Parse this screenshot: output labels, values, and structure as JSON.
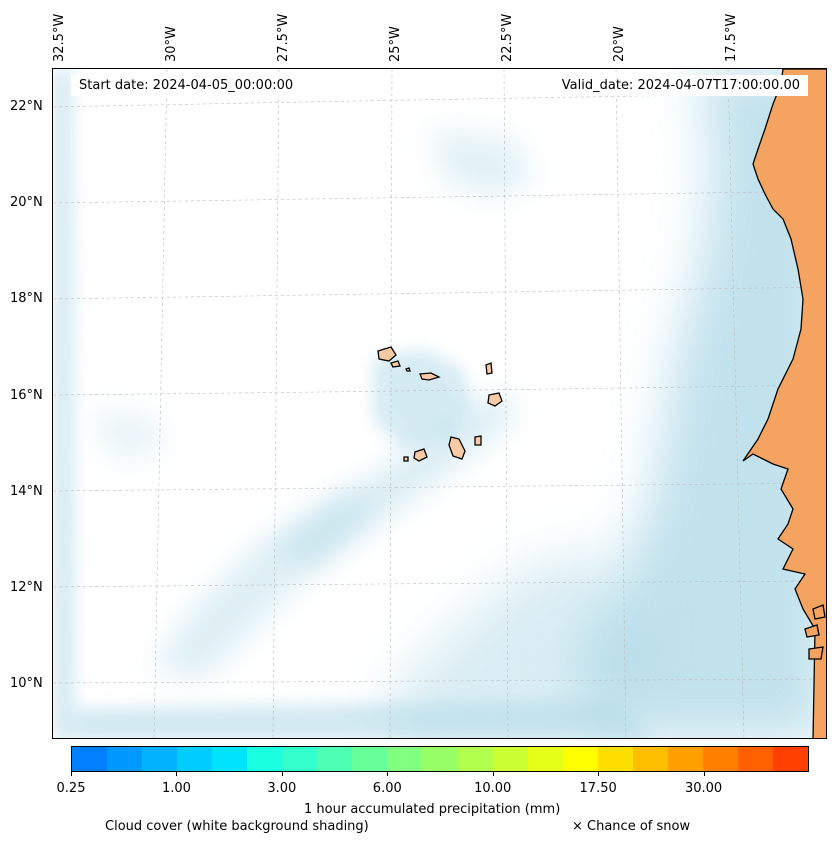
{
  "map": {
    "lon_labels": [
      "32.5°W",
      "30°W",
      "27.5°W",
      "25°W",
      "22.5°W",
      "20°W",
      "17.5°W"
    ],
    "lat_labels": [
      "22°N",
      "20°N",
      "18°N",
      "16°N",
      "14°N",
      "12°N",
      "10°N"
    ],
    "start_date": "Start date: 2024-04-05_00:00:00",
    "valid_date": "Valid_date: 2024-04-07T17:00:00.00",
    "colors": {
      "land_mainland": "#f4a460",
      "land_island": "#f9cba4",
      "cloud": "#add8e6",
      "coast": "#000000",
      "grid": "#bbbbbb"
    }
  },
  "colorbar": {
    "title": "1 hour accumulated precipitation (mm)",
    "tick_labels": [
      "0.25",
      "1.00",
      "3.00",
      "6.00",
      "10.00",
      "17.50",
      "30.00"
    ],
    "colors": [
      "#0080ff",
      "#0099ff",
      "#00b2ff",
      "#00ccff",
      "#00e5ff",
      "#19ffdf",
      "#33ffcc",
      "#4dffb2",
      "#66ff99",
      "#80ff80",
      "#99ff66",
      "#b2ff4d",
      "#ccff33",
      "#e5ff19",
      "#ffff00",
      "#ffdf00",
      "#ffbf00",
      "#ff9f00",
      "#ff8000",
      "#ff6000",
      "#ff4000"
    ]
  },
  "footer": {
    "cloud_note": "Cloud cover (white background shading)",
    "snow_note": "× Chance of snow"
  }
}
